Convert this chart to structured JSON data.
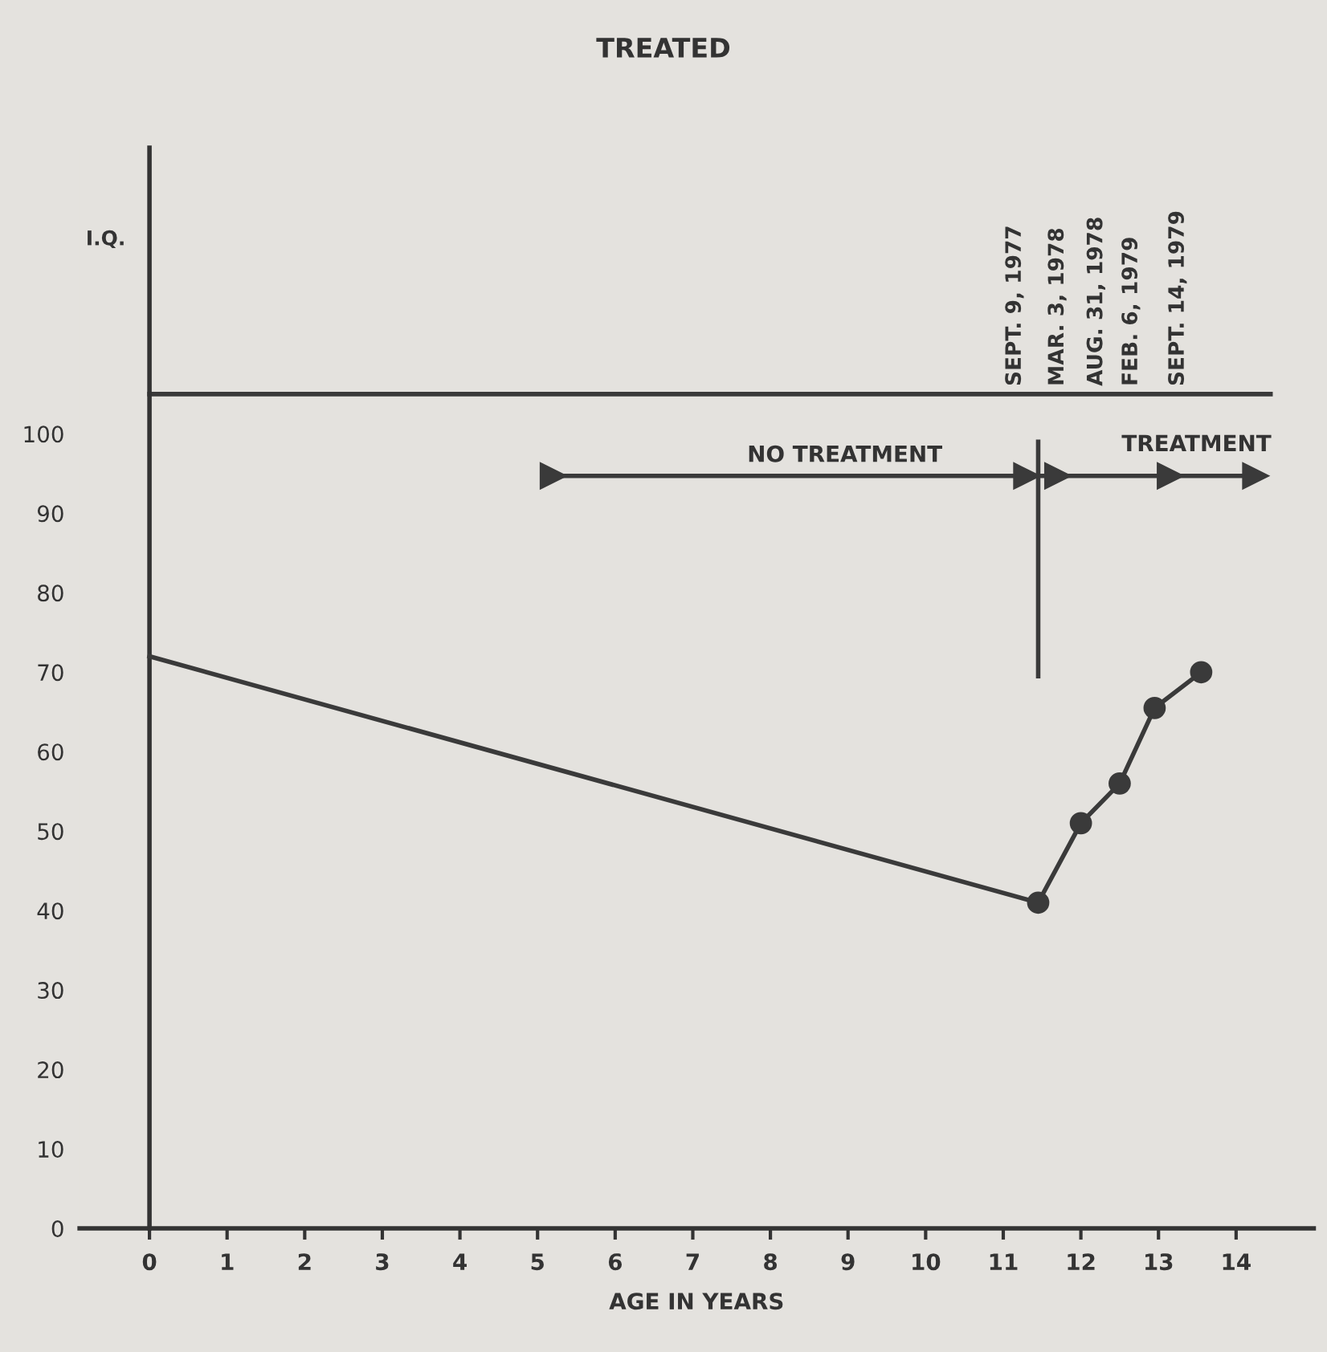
{
  "chart_data": {
    "type": "line",
    "title": "TREATED",
    "xlabel": "AGE IN YEARS",
    "ylabel": "I.Q.",
    "xlim": [
      -0.9,
      15
    ],
    "ylim": [
      0,
      136
    ],
    "xticks": [
      0,
      1,
      2,
      3,
      4,
      5,
      6,
      7,
      8,
      9,
      10,
      11,
      12,
      13,
      14
    ],
    "yticks": [
      0,
      10,
      20,
      30,
      40,
      50,
      60,
      70,
      80,
      90,
      100
    ],
    "grid": false,
    "legend": false,
    "series": [
      {
        "color": "#3a3a3a",
        "x": [
          0,
          11.45
        ],
        "values": [
          72,
          41
        ]
      },
      {
        "color": "#3a3a3a",
        "x": [
          11.45,
          12.0,
          12.5,
          12.95,
          13.55
        ],
        "values": [
          41,
          51,
          56,
          65.5,
          70
        ],
        "marker": "circle"
      },
      {
        "color": "#3a3a3a",
        "x": [
          11.45,
          11.45
        ],
        "values": [
          69.5,
          99
        ]
      },
      {
        "color": "#3a3a3a",
        "x": [
          5.2,
          11.3,
          11.7,
          13.15,
          14.25
        ],
        "values": [
          94.7,
          94.7,
          94.7,
          94.7,
          94.7
        ],
        "marker": "triangle"
      }
    ],
    "ref_lines": [
      {
        "axis": "y",
        "value": 105,
        "color": "#3a3a3a"
      }
    ],
    "annotations": [
      "NO TREATMENT",
      "TREATMENT",
      {
        "text": "SEPT. 9, 1977",
        "x": 11.45,
        "y": 106
      },
      {
        "text": "MAR. 3, 1978",
        "x": 12.0,
        "y": 106
      },
      {
        "text": "AUG. 31, 1978",
        "x": 12.5,
        "y": 106
      },
      {
        "text": "FEB. 6, 1979",
        "x": 12.95,
        "y": 106
      },
      {
        "text": "SEPT. 14, 1979",
        "x": 13.55,
        "y": 106
      }
    ]
  }
}
